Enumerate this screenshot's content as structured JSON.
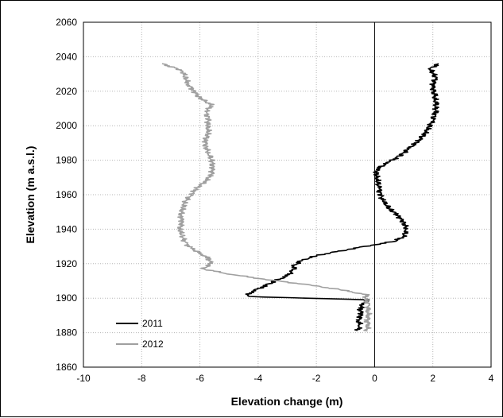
{
  "chart_data": {
    "type": "line",
    "title": "",
    "xlabel": "Elevation change (m)",
    "ylabel": "Elevation (m a.s.l.)",
    "xlim": [
      -10,
      4
    ],
    "ylim": [
      1860,
      2060
    ],
    "xticks": [
      "-10",
      "-8",
      "-6",
      "-4",
      "-2",
      "0",
      "2",
      "4"
    ],
    "yticks": [
      "1860",
      "1880",
      "1900",
      "1920",
      "1940",
      "1960",
      "1980",
      "2000",
      "2020",
      "2040",
      "2060"
    ],
    "grid": "dotted",
    "legend_position": "bottom-left",
    "series": [
      {
        "name": "2011",
        "color": "#000000",
        "points": [
          [
            -0.6,
            1881
          ],
          [
            -0.5,
            1884
          ],
          [
            -0.55,
            1887
          ],
          [
            -0.45,
            1891
          ],
          [
            -0.5,
            1894
          ],
          [
            -0.4,
            1897
          ],
          [
            -0.2,
            1899
          ],
          [
            -4.4,
            1901
          ],
          [
            -4.2,
            1904
          ],
          [
            -3.8,
            1907
          ],
          [
            -3.4,
            1910
          ],
          [
            -3.0,
            1913
          ],
          [
            -2.8,
            1916
          ],
          [
            -2.75,
            1919
          ],
          [
            -2.5,
            1922
          ],
          [
            -1.9,
            1925
          ],
          [
            -1.0,
            1928
          ],
          [
            0.0,
            1931
          ],
          [
            0.7,
            1933
          ],
          [
            1.0,
            1936
          ],
          [
            1.1,
            1940
          ],
          [
            1.0,
            1944
          ],
          [
            0.8,
            1948
          ],
          [
            0.5,
            1952
          ],
          [
            0.3,
            1956
          ],
          [
            0.2,
            1960
          ],
          [
            0.15,
            1964
          ],
          [
            0.1,
            1968
          ],
          [
            0.05,
            1972
          ],
          [
            0.1,
            1975
          ],
          [
            0.5,
            1979
          ],
          [
            0.9,
            1983
          ],
          [
            1.2,
            1987
          ],
          [
            1.5,
            1991
          ],
          [
            1.7,
            1995
          ],
          [
            1.85,
            1999
          ],
          [
            2.0,
            2003
          ],
          [
            2.1,
            2008
          ],
          [
            2.1,
            2013
          ],
          [
            2.05,
            2018
          ],
          [
            2.0,
            2023
          ],
          [
            2.1,
            2028
          ],
          [
            1.9,
            2033
          ],
          [
            2.2,
            2036
          ]
        ]
      },
      {
        "name": "2012",
        "color": "#a0a0a0",
        "points": [
          [
            -0.3,
            1881
          ],
          [
            -0.2,
            1884
          ],
          [
            -0.25,
            1887
          ],
          [
            -0.2,
            1890
          ],
          [
            -0.25,
            1893
          ],
          [
            -0.2,
            1896
          ],
          [
            -0.3,
            1899
          ],
          [
            -0.3,
            1902
          ],
          [
            -1.2,
            1905
          ],
          [
            -2.4,
            1908
          ],
          [
            -3.8,
            1911
          ],
          [
            -5.0,
            1914
          ],
          [
            -5.9,
            1917
          ],
          [
            -5.6,
            1920
          ],
          [
            -5.7,
            1923
          ],
          [
            -6.0,
            1926
          ],
          [
            -6.3,
            1929
          ],
          [
            -6.5,
            1932
          ],
          [
            -6.6,
            1936
          ],
          [
            -6.7,
            1940
          ],
          [
            -6.6,
            1944
          ],
          [
            -6.65,
            1948
          ],
          [
            -6.6,
            1952
          ],
          [
            -6.5,
            1956
          ],
          [
            -6.3,
            1960
          ],
          [
            -6.1,
            1964
          ],
          [
            -5.8,
            1968
          ],
          [
            -5.6,
            1972
          ],
          [
            -5.55,
            1976
          ],
          [
            -5.6,
            1980
          ],
          [
            -5.7,
            1984
          ],
          [
            -5.8,
            1988
          ],
          [
            -5.8,
            1992
          ],
          [
            -5.7,
            1996
          ],
          [
            -5.75,
            2000
          ],
          [
            -5.7,
            2004
          ],
          [
            -5.8,
            2008
          ],
          [
            -5.6,
            2012
          ],
          [
            -6.0,
            2016
          ],
          [
            -6.2,
            2020
          ],
          [
            -6.4,
            2024
          ],
          [
            -6.5,
            2028
          ],
          [
            -6.6,
            2032
          ],
          [
            -7.3,
            2036
          ]
        ]
      }
    ]
  }
}
